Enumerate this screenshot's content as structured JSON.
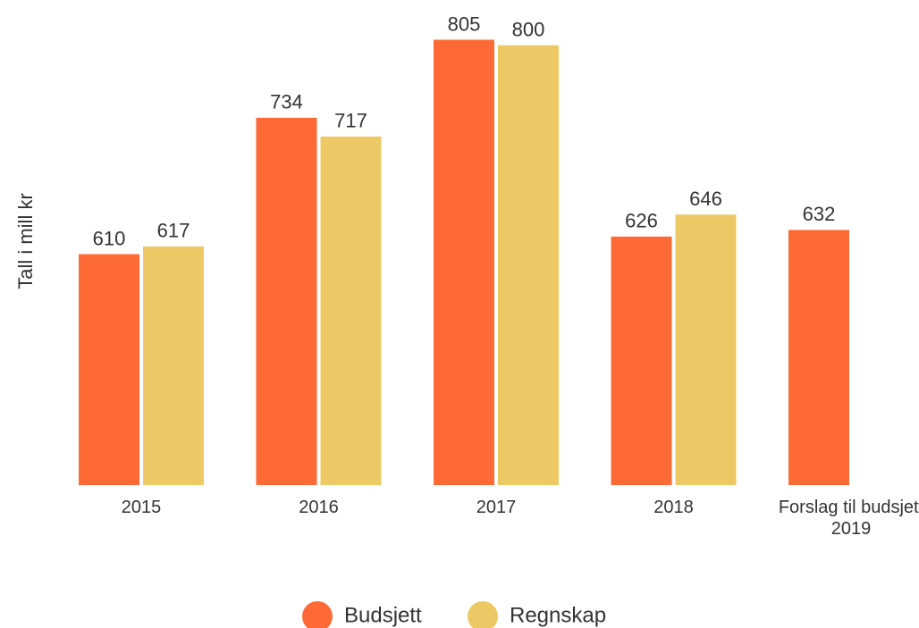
{
  "chart_data": {
    "type": "bar",
    "y_label": "Tall i mill kr",
    "categories": [
      "2015",
      "2016",
      "2017",
      "2018",
      "Forslag til budsjett 2019"
    ],
    "series": [
      {
        "name": "Budsjett",
        "color": "#fe6a35",
        "values": [
          610,
          734,
          805,
          626,
          632
        ]
      },
      {
        "name": "Regnskap",
        "color": "#edc966",
        "values": [
          617,
          717,
          800,
          646,
          null
        ]
      }
    ],
    "ylim": [
      400,
      820
    ],
    "legend": "bottom"
  }
}
